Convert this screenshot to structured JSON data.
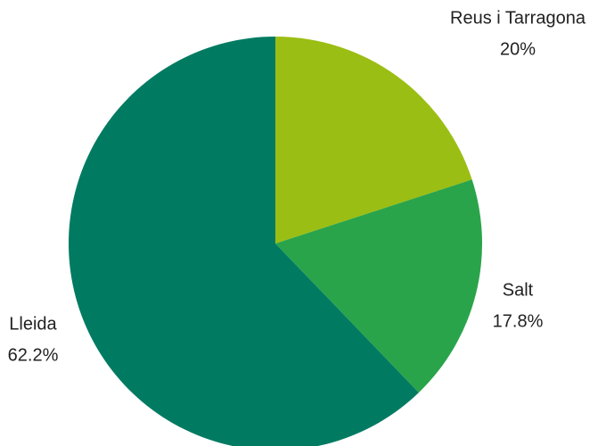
{
  "chart_data": {
    "type": "pie",
    "categories": [
      "Reus i Tarragona",
      "Salt",
      "Lleida"
    ],
    "values": [
      20,
      17.8,
      62.2
    ],
    "value_labels": [
      "20%",
      "17.8%",
      "62.2%"
    ],
    "colors": [
      "#9bbe14",
      "#2aa44a",
      "#007b62"
    ]
  }
}
